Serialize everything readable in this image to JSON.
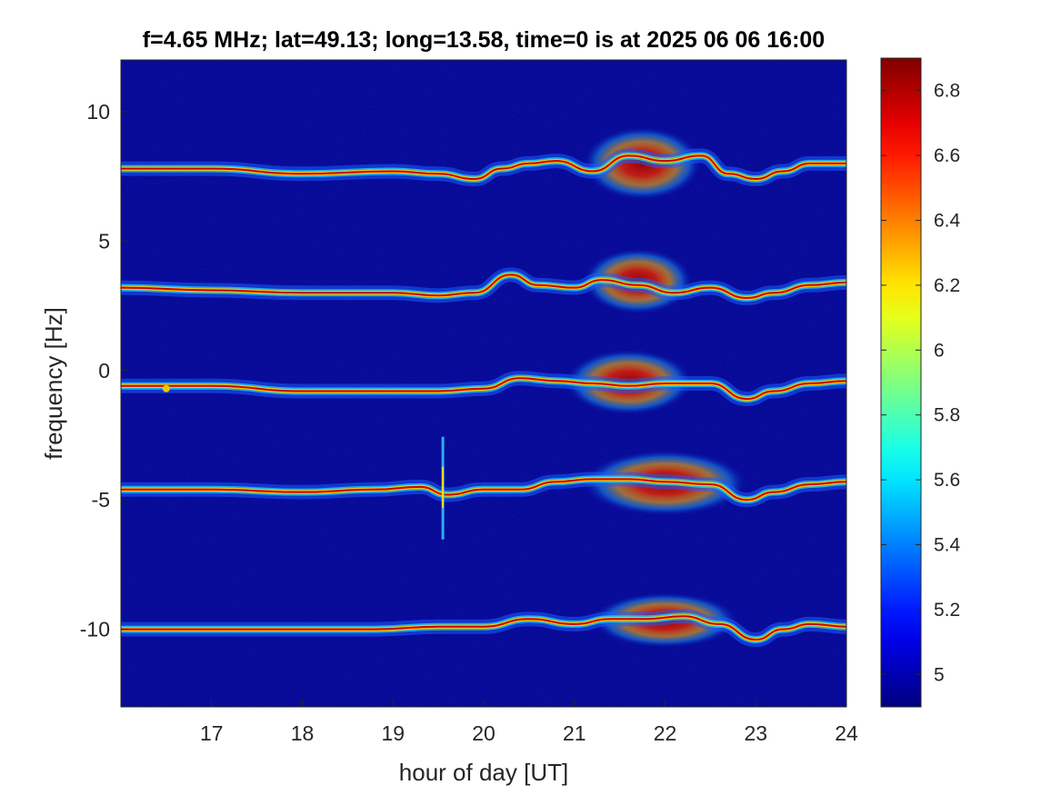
{
  "chart_data": {
    "type": "heatmap",
    "title": "f=4.65 MHz;  lat=49.13; long=13.58, time=0 is at 2025 06 06 16:00",
    "xlabel": "hour of day [UT]",
    "ylabel": "frequency [Hz]",
    "xlim": [
      16.0,
      24.0
    ],
    "ylim": [
      -13.0,
      12.0
    ],
    "xticks": [
      17,
      18,
      19,
      20,
      21,
      22,
      23,
      24
    ],
    "xtick_labels": [
      "17",
      "18",
      "19",
      "20",
      "21",
      "22",
      "23",
      "24"
    ],
    "yticks": [
      -10,
      -5,
      0,
      5,
      10
    ],
    "ytick_labels": [
      "-10",
      "-5",
      "0",
      "5",
      "10"
    ],
    "colorbar": {
      "colormap": "jet",
      "clim": [
        4.9,
        6.9
      ],
      "ticks": [
        5.0,
        5.2,
        5.4,
        5.6,
        5.8,
        6.0,
        6.2,
        6.4,
        6.6,
        6.8
      ],
      "tick_labels": [
        "5",
        "5.2",
        "5.4",
        "5.6",
        "5.8",
        "6",
        "6.2",
        "6.4",
        "6.6",
        "6.8"
      ]
    },
    "background_value": 4.95,
    "traces": [
      {
        "offset_hz": 7.9,
        "hours": [
          16.0,
          17.0,
          18.0,
          19.0,
          19.5,
          19.9,
          20.2,
          20.5,
          20.8,
          21.2,
          21.6,
          22.0,
          22.4,
          22.7,
          23.0,
          23.3,
          23.6,
          24.0
        ],
        "freq_hz": [
          7.8,
          7.8,
          7.6,
          7.7,
          7.6,
          7.4,
          7.8,
          8.0,
          8.1,
          7.7,
          8.3,
          8.1,
          8.3,
          7.6,
          7.4,
          7.7,
          8.0,
          8.0
        ]
      },
      {
        "offset_hz": 3.2,
        "hours": [
          16.0,
          17.0,
          18.0,
          19.0,
          19.5,
          19.9,
          20.3,
          20.6,
          21.0,
          21.3,
          21.7,
          22.1,
          22.5,
          22.9,
          23.2,
          23.6,
          24.0
        ],
        "freq_hz": [
          3.2,
          3.1,
          3.0,
          3.0,
          2.9,
          3.0,
          3.7,
          3.3,
          3.2,
          3.5,
          3.3,
          3.0,
          3.2,
          2.8,
          3.0,
          3.3,
          3.4
        ]
      },
      {
        "offset_hz": -0.5,
        "hours": [
          16.0,
          17.0,
          18.0,
          19.0,
          19.5,
          20.0,
          20.4,
          20.8,
          21.2,
          21.6,
          22.0,
          22.5,
          22.9,
          23.2,
          23.6,
          24.0
        ],
        "freq_hz": [
          -0.6,
          -0.6,
          -0.8,
          -0.8,
          -0.8,
          -0.7,
          -0.3,
          -0.4,
          -0.5,
          -0.6,
          -0.5,
          -0.5,
          -1.1,
          -0.8,
          -0.5,
          -0.4
        ],
        "features": [
          {
            "hour": 16.5,
            "freq_hz": -0.7
          }
        ]
      },
      {
        "offset_hz": -4.5,
        "hours": [
          16.0,
          17.0,
          18.0,
          18.8,
          19.3,
          19.6,
          20.0,
          20.4,
          20.8,
          21.2,
          21.6,
          22.0,
          22.5,
          22.9,
          23.2,
          23.6,
          24.0
        ],
        "freq_hz": [
          -4.6,
          -4.6,
          -4.7,
          -4.6,
          -4.5,
          -4.8,
          -4.6,
          -4.6,
          -4.3,
          -4.2,
          -4.2,
          -4.3,
          -4.4,
          -5.0,
          -4.7,
          -4.4,
          -4.3
        ],
        "features": [
          {
            "hour": 19.55,
            "freq_hz": -4.6,
            "type": "vertical spike"
          }
        ]
      },
      {
        "offset_hz": -10.0,
        "hours": [
          16.0,
          17.0,
          18.0,
          18.8,
          19.5,
          20.0,
          20.5,
          21.0,
          21.4,
          21.8,
          22.2,
          22.6,
          23.0,
          23.3,
          23.6,
          24.0
        ],
        "freq_hz": [
          -10.0,
          -10.0,
          -10.0,
          -10.0,
          -9.9,
          -9.9,
          -9.6,
          -9.8,
          -9.6,
          -9.6,
          -9.5,
          -9.8,
          -10.4,
          -10.0,
          -9.8,
          -9.9
        ]
      }
    ],
    "enhanced_regions": [
      {
        "hours": [
          21.2,
          22.3
        ],
        "freq_hz": [
          6.8,
          9.2
        ],
        "peak": 6.9
      },
      {
        "hours": [
          21.2,
          22.2
        ],
        "freq_hz": [
          2.4,
          4.5
        ],
        "peak": 6.85
      },
      {
        "hours": [
          21.0,
          22.2
        ],
        "freq_hz": [
          -1.5,
          0.6
        ],
        "peak": 6.85
      },
      {
        "hours": [
          21.2,
          22.8
        ],
        "freq_hz": [
          -5.4,
          -3.3
        ],
        "peak": 6.9
      },
      {
        "hours": [
          21.3,
          22.7
        ],
        "freq_hz": [
          -10.5,
          -8.8
        ],
        "peak": 6.9
      }
    ]
  }
}
